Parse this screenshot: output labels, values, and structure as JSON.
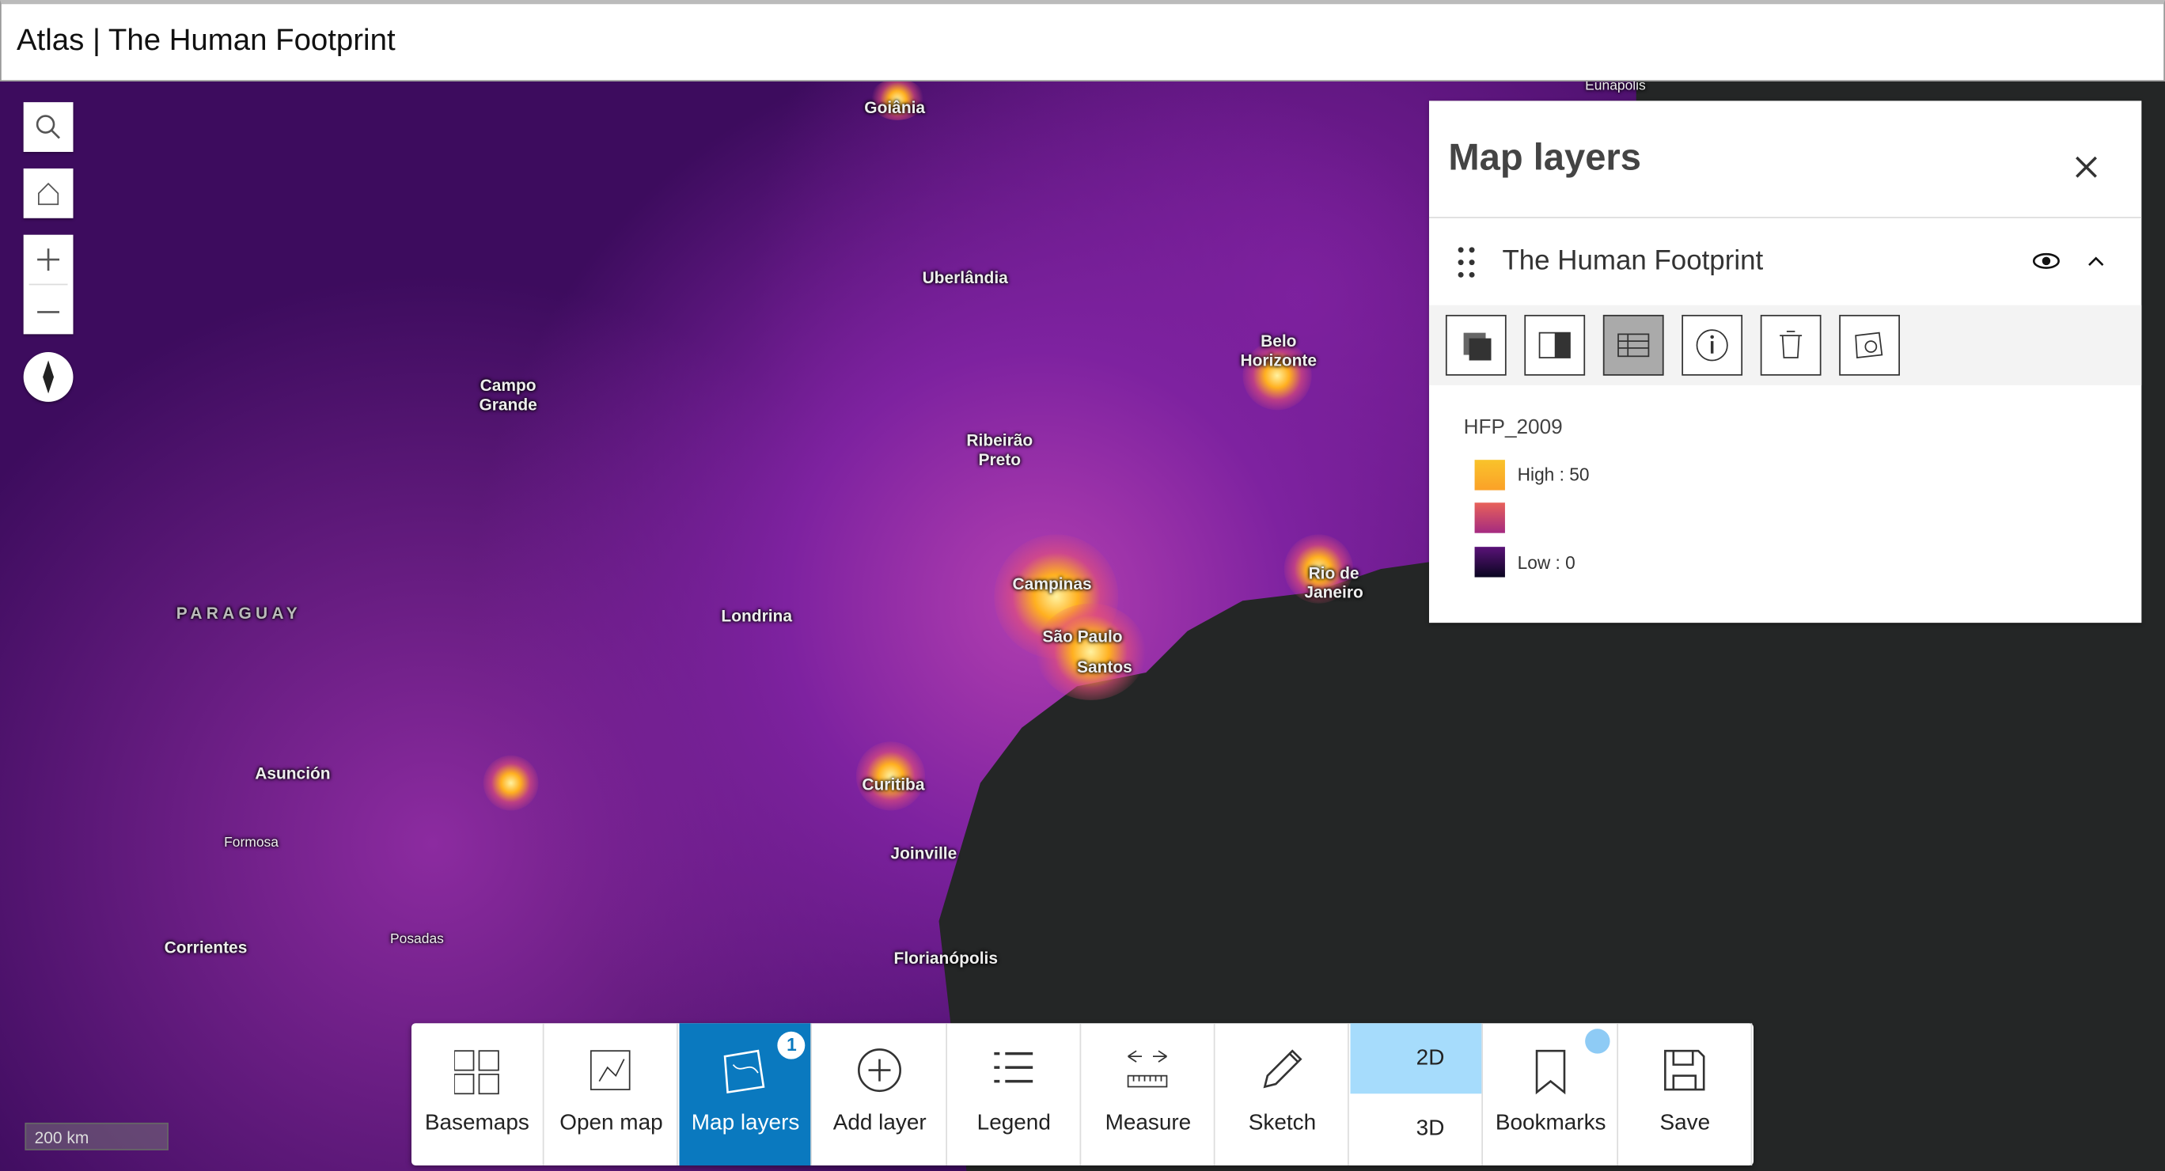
{
  "header": {
    "title": "Atlas | The Human Footprint"
  },
  "map": {
    "labels": [
      "Eunápolis",
      "Goiânia",
      "Uberlândia",
      "Belo Horizonte",
      "Campo Grande",
      "Ribeirão Preto",
      "Rio de Janeiro",
      "PARAGUAY",
      "Londrina",
      "Campinas",
      "São Paulo",
      "Santos",
      "Asunción",
      "Formosa",
      "Curitiba",
      "Joinville",
      "Corrientes",
      "Posadas",
      "Florianópolis"
    ],
    "scale_bar": "200 km"
  },
  "panel": {
    "title": "Map layers",
    "layer": {
      "name": "The Human Footprint"
    },
    "legend": {
      "field": "HFP_2009",
      "items": [
        {
          "label": "High : 50"
        },
        {
          "label": "Low : 0"
        }
      ]
    }
  },
  "toolbar": {
    "buttons": [
      "Basemaps",
      "Open map",
      "Map layers",
      "Add layer",
      "Legend",
      "Measure",
      "Sketch",
      "Bookmarks",
      "Save"
    ],
    "badge": "1",
    "view_modes": [
      "2D",
      "3D"
    ]
  }
}
